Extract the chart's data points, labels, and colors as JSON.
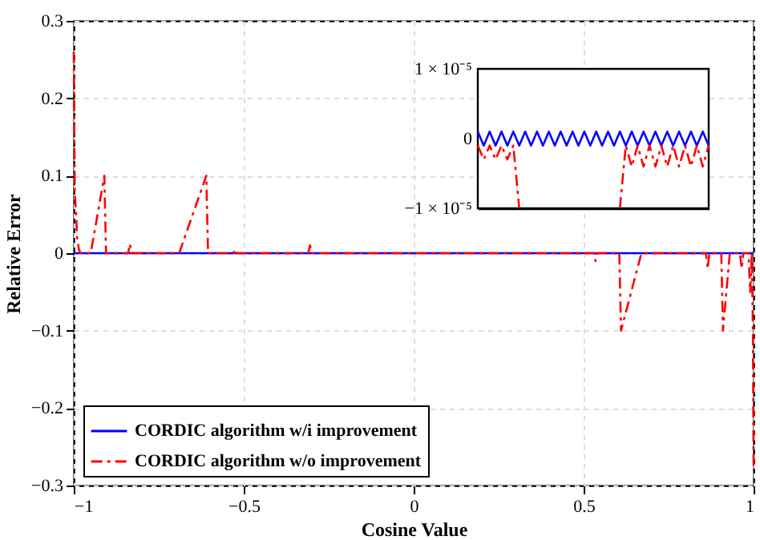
{
  "chart_data": [
    {
      "type": "line",
      "xlabel": "Cosine Value",
      "ylabel": "Relative Error",
      "xlim": [
        -1,
        1
      ],
      "xticks": [
        -1,
        -0.5,
        0,
        0.5,
        1
      ],
      "ylim": [
        -0.3,
        0.3
      ],
      "yticks": [
        -0.3,
        -0.2,
        -0.1,
        0,
        0.1,
        0.2,
        0.3
      ],
      "grid": true,
      "legend": "bottom left",
      "series": [
        {
          "name": "CORDIC algorithm w/i improvement",
          "color": "#0000ff",
          "line_style": "solid",
          "x": [
            -1,
            1
          ],
          "values": [
            0,
            0
          ]
        },
        {
          "name": "CORDIC algorithm w/o improvement",
          "color": "#ff0000",
          "line_style": "dashdot",
          "x": [
            -1,
            -0.997,
            -0.993,
            -0.99,
            -0.985,
            -0.98,
            -0.95,
            -0.91,
            -0.905,
            -0.84,
            -0.835,
            -0.83,
            -0.69,
            -0.61,
            -0.605,
            -0.53,
            -0.525,
            -0.52,
            -0.31,
            -0.305,
            -0.3,
            0.53,
            0.535,
            0.54,
            0.605,
            0.61,
            0.67,
            0.86,
            0.865,
            0.87,
            0.905,
            0.91,
            0.93,
            0.96,
            0.965,
            0.97,
            0.985,
            0.99,
            0.995,
            0.998,
            1
          ],
          "values": [
            0.26,
            0.08,
            0.05,
            0.02,
            0.005,
            0,
            0,
            0.1,
            0,
            0,
            0.012,
            0,
            0,
            0.1,
            0,
            0,
            0.005,
            0,
            0,
            0.01,
            0,
            0,
            -0.01,
            0,
            0,
            -0.1,
            0,
            0,
            -0.02,
            0,
            0,
            -0.1,
            0,
            0,
            -0.02,
            0,
            0,
            -0.05,
            0,
            -0.1,
            -0.28
          ]
        }
      ]
    },
    {
      "type": "line",
      "categories": [
        null,
        null,
        null,
        null,
        null,
        null,
        null,
        null,
        null,
        null,
        null,
        null,
        null,
        null,
        null,
        null,
        null,
        null,
        null,
        null,
        null,
        null,
        null,
        null,
        null,
        null,
        null,
        null,
        null,
        null,
        null,
        null,
        null,
        null,
        null,
        null,
        null,
        null,
        null,
        null
      ],
      "ylim": [
        -1e-05,
        1e-05
      ],
      "yticks": [
        {
          "value": 1e-05,
          "label": "1 × 10⁻⁵"
        },
        0,
        {
          "value": -1e-05,
          "label": "−1 × 10⁻⁵"
        }
      ],
      "grid": false,
      "series": [
        {
          "color": "#0000ff",
          "line_style": "solid",
          "values": [
            1e-06,
            -1e-06,
            1e-06,
            -1e-06,
            1e-06,
            -1e-06,
            1e-06,
            -1e-06,
            1e-06,
            -1e-06,
            1e-06,
            -1e-06,
            1e-06,
            -1e-06,
            1e-06,
            -1e-06,
            1e-06,
            -1e-06,
            1e-06,
            -1e-06,
            1e-06,
            -1e-06,
            1e-06,
            -1e-06,
            1e-06,
            -1e-06,
            1e-06,
            -1e-06,
            1e-06,
            -1e-06,
            1e-06,
            -1e-06,
            1e-06,
            -1e-06,
            1e-06,
            -1e-06,
            1e-06,
            -1e-06,
            1e-06,
            -1e-06
          ]
        },
        {
          "color": "#ff0000",
          "line_style": "dashdot",
          "values": [
            -1e-06,
            -3e-06,
            -1e-06,
            -3e-06,
            -1e-06,
            -3e-06,
            -1e-06,
            -1e-05,
            null,
            null,
            null,
            null,
            null,
            null,
            null,
            null,
            null,
            null,
            null,
            null,
            null,
            null,
            null,
            null,
            -1e-05,
            -1e-06,
            -4e-06,
            -1e-06,
            -4e-06,
            -1e-06,
            -4e-06,
            -1e-06,
            -4e-06,
            -1e-06,
            -4e-06,
            -1e-06,
            -4e-06,
            -1e-06,
            -4e-06,
            -1e-06
          ]
        }
      ]
    }
  ]
}
